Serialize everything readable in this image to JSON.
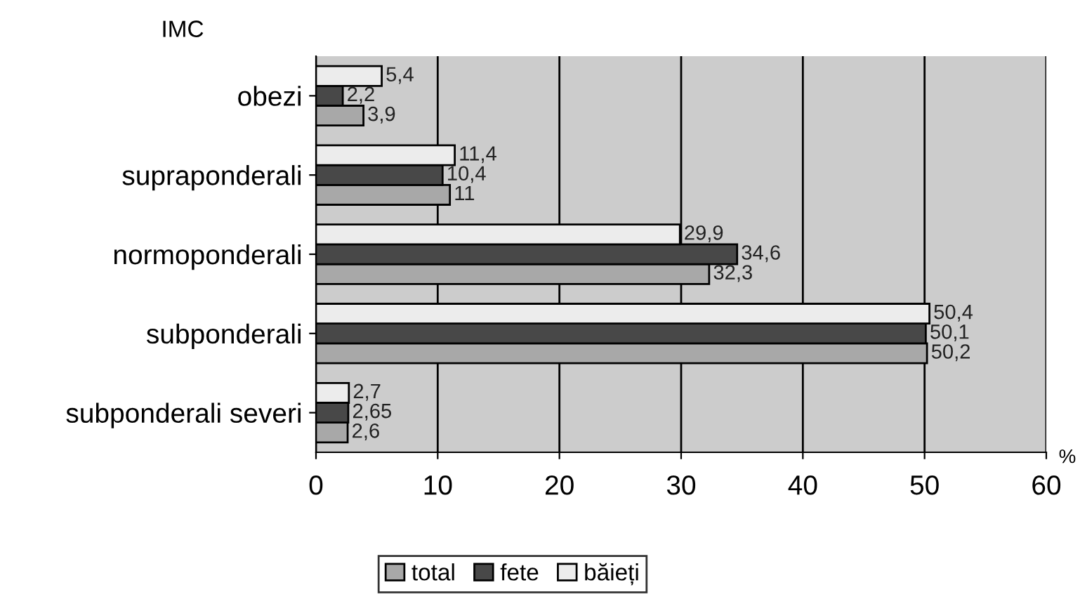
{
  "chart_data": {
    "type": "bar",
    "orientation": "horizontal",
    "ylabel": "IMC",
    "xlabel": "%",
    "categories": [
      "obezi",
      "supraponderali",
      "normoponderali",
      "subponderali",
      "subponderali severi"
    ],
    "series": [
      {
        "name": "total",
        "color": "#a8a8a8",
        "values": [
          3.9,
          11,
          32.3,
          50.2,
          2.6
        ],
        "value_labels": [
          "3,9",
          "11",
          "32,3",
          "50,2",
          "2,6"
        ]
      },
      {
        "name": "fete",
        "color": "#484848",
        "values": [
          2.2,
          10.4,
          34.6,
          50.1,
          2.65
        ],
        "value_labels": [
          "2,2",
          "10,4",
          "34,6",
          "50,1",
          "2,65"
        ]
      },
      {
        "name": "băieți",
        "color": "#ececec",
        "values": [
          5.4,
          11.4,
          29.9,
          50.4,
          2.7
        ],
        "value_labels": [
          "5,4",
          "11,4",
          "29,9",
          "50,4",
          "2,7"
        ]
      }
    ],
    "xlim": [
      0,
      60
    ],
    "xticks": [
      0,
      10,
      20,
      30,
      40,
      50,
      60
    ],
    "grid": "x",
    "legend": "bottom"
  }
}
